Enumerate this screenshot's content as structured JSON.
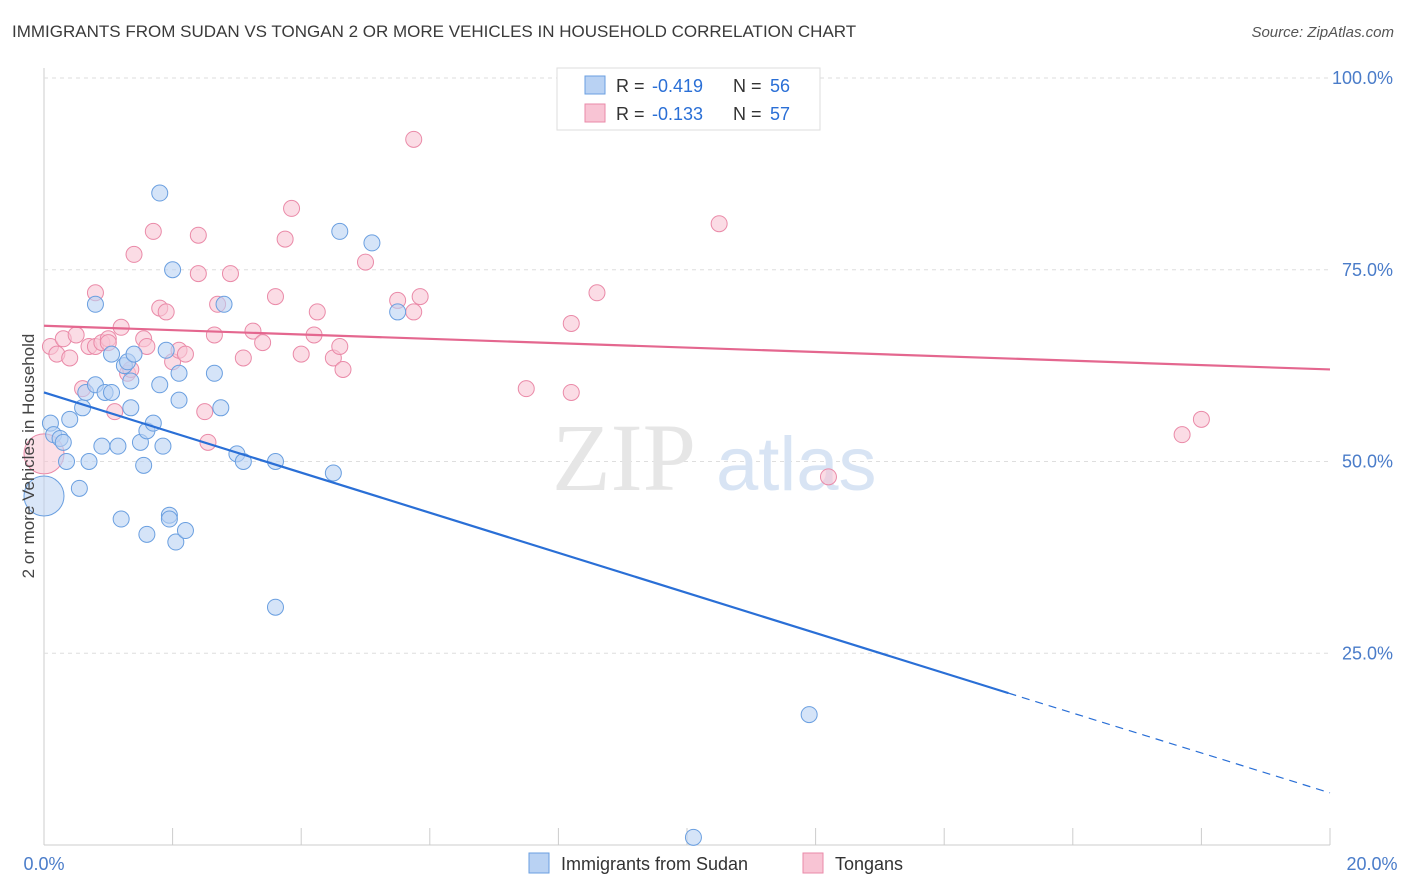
{
  "header": {
    "title": "IMMIGRANTS FROM SUDAN VS TONGAN 2 OR MORE VEHICLES IN HOUSEHOLD CORRELATION CHART",
    "source": "Source: ZipAtlas.com"
  },
  "watermark": {
    "zip": "ZIP",
    "atlas": "atlas"
  },
  "colors": {
    "sudan": "#6a9fe0",
    "sudan_fill": "#b9d2f3",
    "sudan_line": "#2a6fd6",
    "tongan": "#ea8aa8",
    "tongan_fill": "#f8c4d4",
    "tongan_line": "#e4678f",
    "tick_label": "#4a7cc9"
  },
  "legend": {
    "rows": [
      {
        "r_label": "R =",
        "r_value": "-0.419",
        "n_label": "N =",
        "n_value": "56"
      },
      {
        "r_label": "R =",
        "r_value": "-0.133",
        "n_label": "N =",
        "n_value": "57"
      }
    ]
  },
  "chart_data": {
    "type": "scatter",
    "title": "IMMIGRANTS FROM SUDAN VS TONGAN 2 OR MORE VEHICLES IN HOUSEHOLD CORRELATION CHART",
    "xlabel": "",
    "ylabel": "2 or more Vehicles in Household",
    "xlim": [
      0,
      20
    ],
    "ylim": [
      0,
      100
    ],
    "x_tick_labels": [
      "0.0%",
      "20.0%"
    ],
    "y_ticks": [
      25,
      50,
      75,
      100
    ],
    "y_tick_labels": [
      "25.0%",
      "50.0%",
      "75.0%",
      "100.0%"
    ],
    "grid": "horizontal dashed",
    "legend_position": "top-center",
    "bottom_legend": [
      "Immigrants from Sudan",
      "Tongans"
    ],
    "series": [
      {
        "name": "Immigrants from Sudan",
        "r": -0.419,
        "n": 56,
        "trend": {
          "x1": 0,
          "y1": 59.0,
          "x2": 15.0,
          "y2": 19.8,
          "dash_to_x": 20,
          "dash_to_y": 6.8
        },
        "points": [
          [
            0.0,
            45.5
          ],
          [
            0.1,
            55.0
          ],
          [
            0.15,
            53.5
          ],
          [
            0.25,
            53.0
          ],
          [
            0.3,
            52.5
          ],
          [
            0.35,
            50.0
          ],
          [
            0.4,
            55.5
          ],
          [
            0.55,
            46.5
          ],
          [
            0.6,
            57.0
          ],
          [
            0.65,
            59.0
          ],
          [
            0.7,
            50.0
          ],
          [
            0.8,
            60.0
          ],
          [
            0.8,
            70.5
          ],
          [
            0.9,
            52.0
          ],
          [
            0.95,
            59.0
          ],
          [
            1.05,
            59.0
          ],
          [
            1.05,
            64.0
          ],
          [
            1.15,
            52.0
          ],
          [
            1.2,
            42.5
          ],
          [
            1.25,
            62.5
          ],
          [
            1.3,
            63.0
          ],
          [
            1.35,
            57.0
          ],
          [
            1.35,
            60.5
          ],
          [
            1.4,
            64.0
          ],
          [
            1.5,
            52.5
          ],
          [
            1.55,
            49.5
          ],
          [
            1.6,
            54.0
          ],
          [
            1.6,
            40.5
          ],
          [
            1.7,
            55.0
          ],
          [
            1.8,
            60.0
          ],
          [
            1.85,
            52.0
          ],
          [
            1.8,
            85.0
          ],
          [
            1.9,
            64.5
          ],
          [
            1.95,
            43.0
          ],
          [
            1.95,
            42.5
          ],
          [
            2.0,
            75.0
          ],
          [
            2.05,
            39.5
          ],
          [
            2.1,
            61.5
          ],
          [
            2.1,
            58.0
          ],
          [
            2.2,
            41.0
          ],
          [
            2.65,
            61.5
          ],
          [
            2.75,
            57.0
          ],
          [
            2.8,
            70.5
          ],
          [
            3.0,
            51.0
          ],
          [
            3.1,
            50.0
          ],
          [
            3.6,
            50.0
          ],
          [
            3.6,
            31.0
          ],
          [
            4.5,
            48.5
          ],
          [
            4.6,
            80.0
          ],
          [
            5.1,
            78.5
          ],
          [
            5.5,
            69.5
          ],
          [
            11.9,
            17.0
          ],
          [
            10.1,
            1.0
          ]
        ]
      },
      {
        "name": "Tongans",
        "r": -0.133,
        "n": 57,
        "trend": {
          "x1": 0,
          "y1": 67.7,
          "x2": 20,
          "y2": 62.0
        },
        "points": [
          [
            0.0,
            51.0
          ],
          [
            0.1,
            65.0
          ],
          [
            0.2,
            64.0
          ],
          [
            0.3,
            66.0
          ],
          [
            0.4,
            63.5
          ],
          [
            0.5,
            66.5
          ],
          [
            0.6,
            59.5
          ],
          [
            0.7,
            65.0
          ],
          [
            0.8,
            65.0
          ],
          [
            0.8,
            72.0
          ],
          [
            0.9,
            65.5
          ],
          [
            1.0,
            66.0
          ],
          [
            1.0,
            65.5
          ],
          [
            1.1,
            56.5
          ],
          [
            1.2,
            67.5
          ],
          [
            1.3,
            61.5
          ],
          [
            1.35,
            62.0
          ],
          [
            1.4,
            77.0
          ],
          [
            1.55,
            66.0
          ],
          [
            1.6,
            65.0
          ],
          [
            1.7,
            80.0
          ],
          [
            1.8,
            70.0
          ],
          [
            1.9,
            69.5
          ],
          [
            2.0,
            63.0
          ],
          [
            2.1,
            64.5
          ],
          [
            2.2,
            64.0
          ],
          [
            2.4,
            74.5
          ],
          [
            2.4,
            79.5
          ],
          [
            2.5,
            56.5
          ],
          [
            2.55,
            52.5
          ],
          [
            2.65,
            66.5
          ],
          [
            2.7,
            70.5
          ],
          [
            2.9,
            74.5
          ],
          [
            3.1,
            63.5
          ],
          [
            3.25,
            67.0
          ],
          [
            3.4,
            65.5
          ],
          [
            3.6,
            71.5
          ],
          [
            3.75,
            79.0
          ],
          [
            3.85,
            83.0
          ],
          [
            4.0,
            64.0
          ],
          [
            4.2,
            66.5
          ],
          [
            4.25,
            69.5
          ],
          [
            4.5,
            63.5
          ],
          [
            4.6,
            65.0
          ],
          [
            4.65,
            62.0
          ],
          [
            5.0,
            76.0
          ],
          [
            5.5,
            71.0
          ],
          [
            5.75,
            69.5
          ],
          [
            5.85,
            71.5
          ],
          [
            5.75,
            92.0
          ],
          [
            7.5,
            59.5
          ],
          [
            8.2,
            68.0
          ],
          [
            8.2,
            59.0
          ],
          [
            8.6,
            72.0
          ],
          [
            10.5,
            81.0
          ],
          [
            12.2,
            48.0
          ],
          [
            17.7,
            53.5
          ],
          [
            18.0,
            55.5
          ]
        ]
      }
    ]
  }
}
